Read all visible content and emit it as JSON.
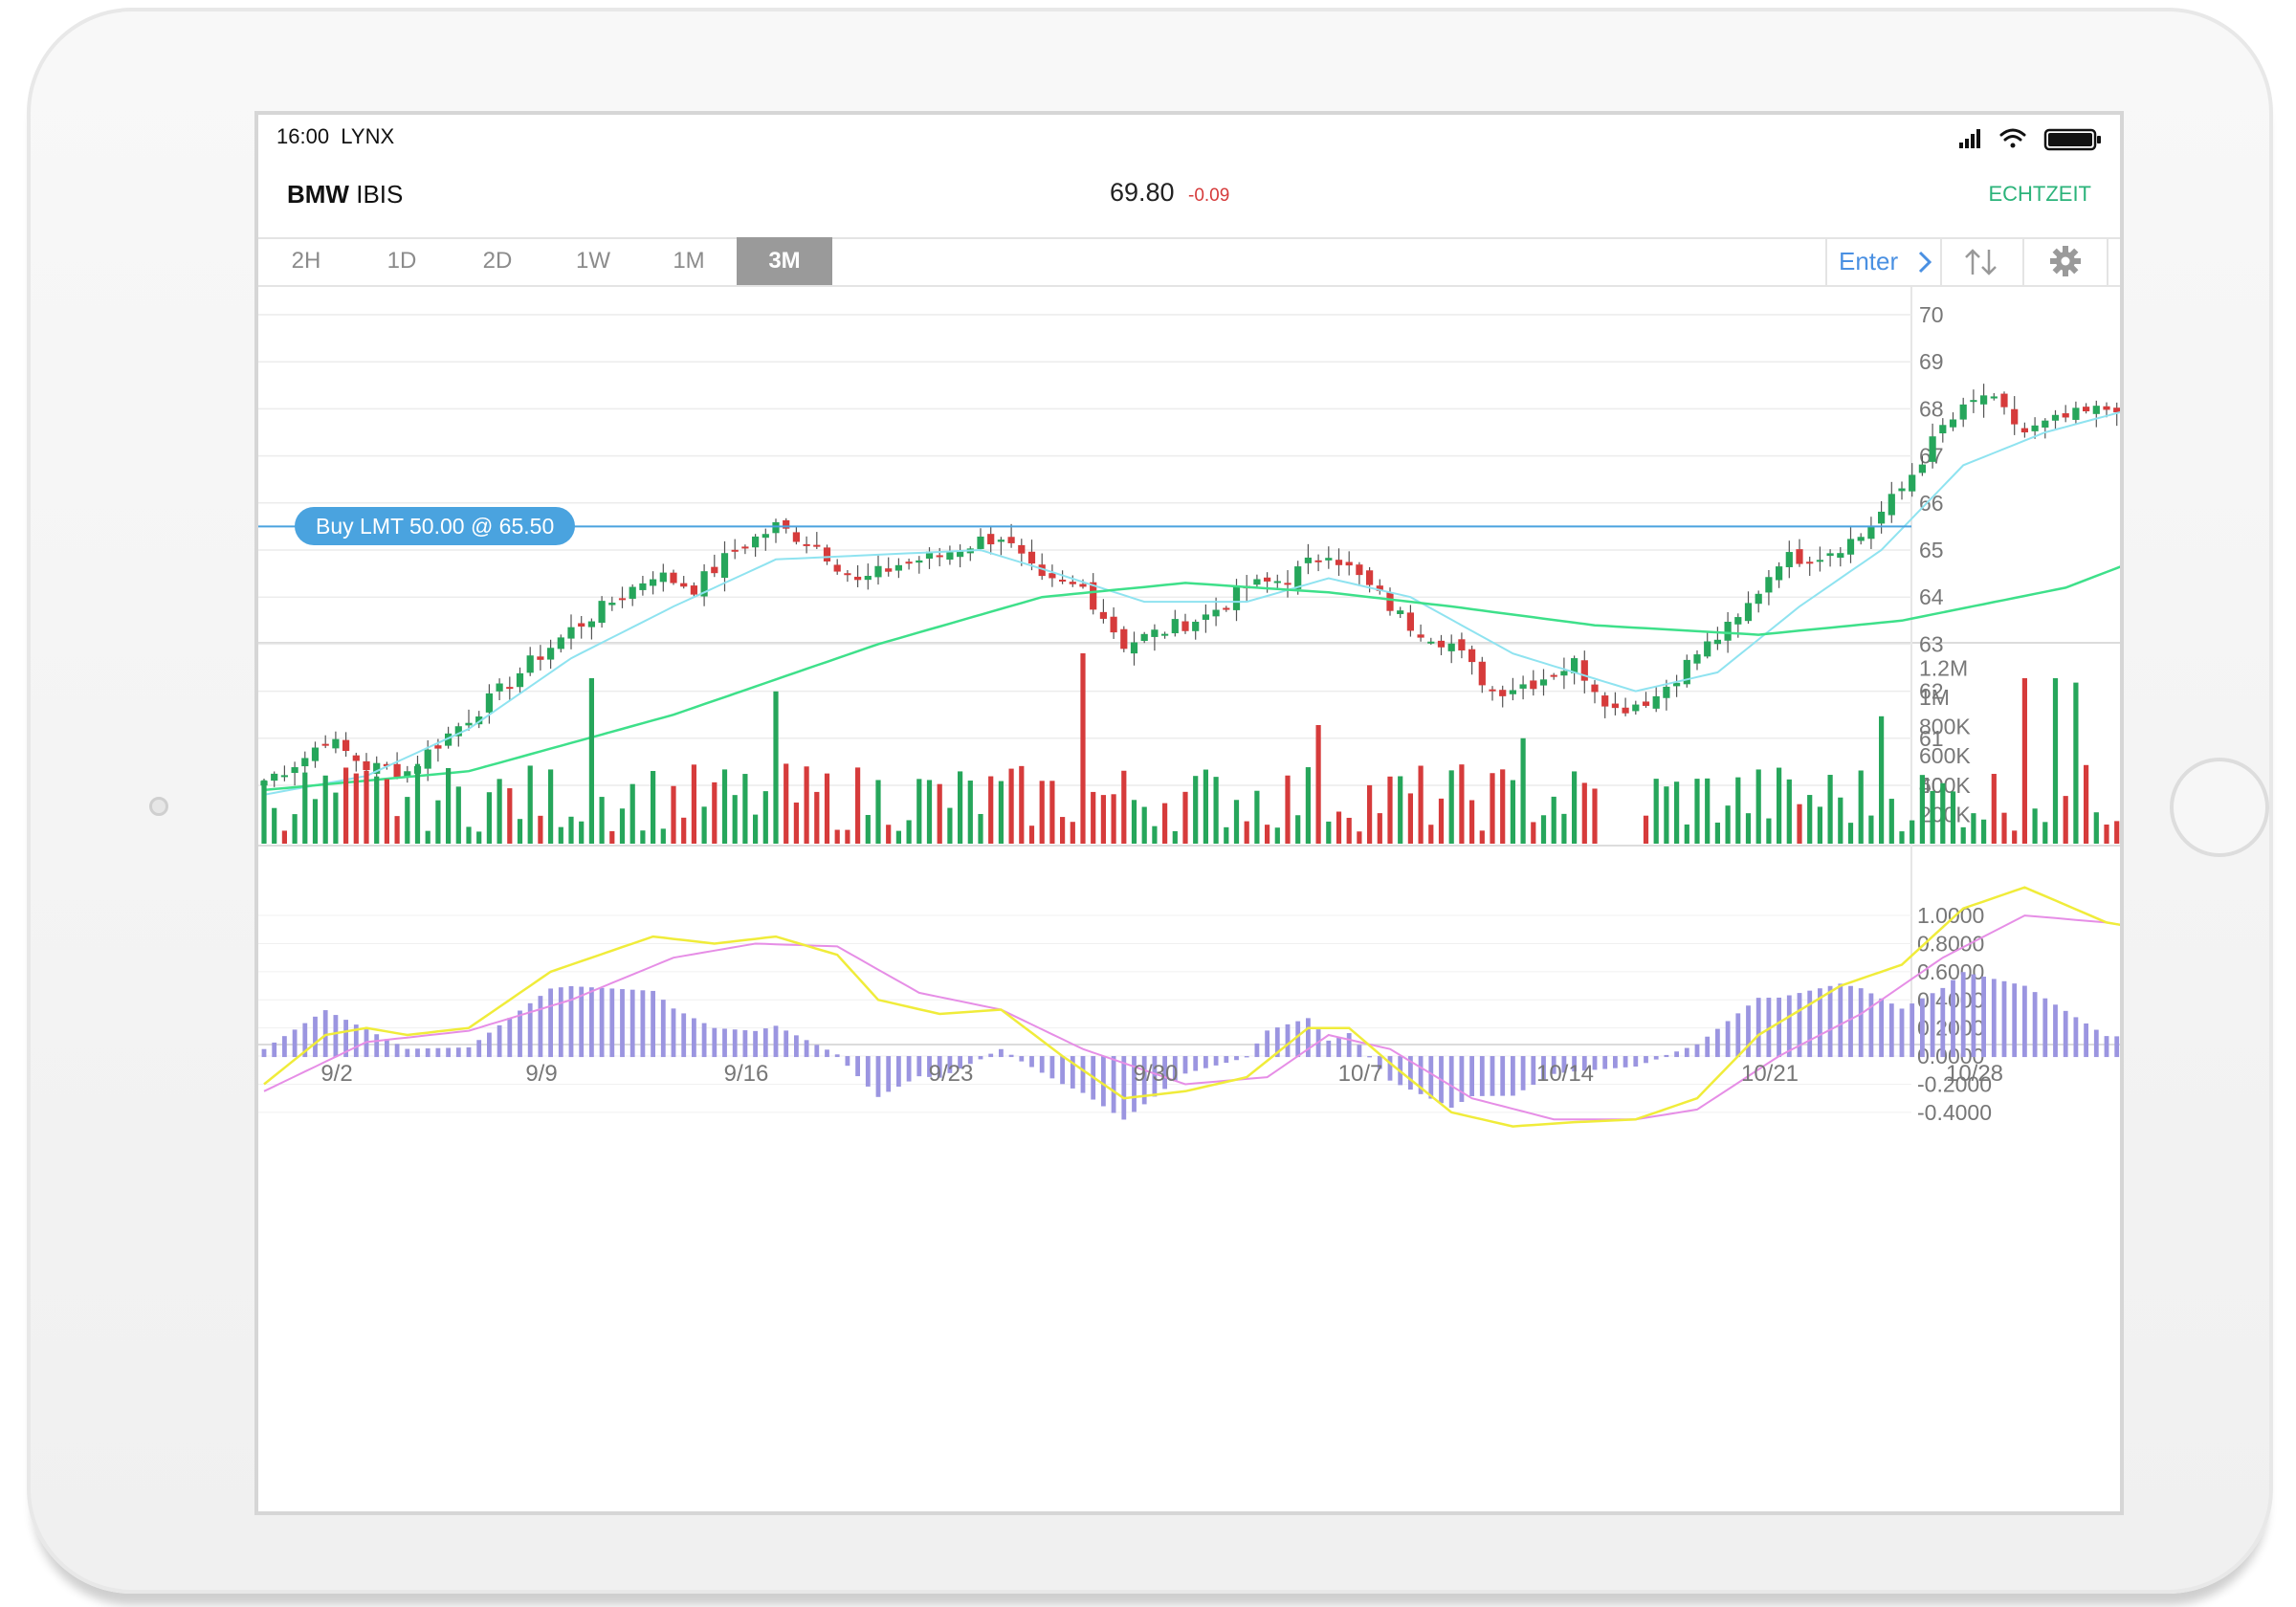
{
  "status_bar": {
    "time": "16:00",
    "carrier": "LYNX"
  },
  "header": {
    "symbol": "BMW",
    "exchange": "IBIS",
    "price": "69.80",
    "change": "-0.09",
    "mode": "ECHTZEIT"
  },
  "toolbar": {
    "timeframes": [
      "2H",
      "1D",
      "2D",
      "1W",
      "1M",
      "3M"
    ],
    "active_timeframe": "3M",
    "enter_label": "Enter",
    "sort_icon": "sort-up-down-icon",
    "settings_icon": "gear-icon"
  },
  "order_line": {
    "label": "Buy LMT 50.00 @ 65.50",
    "price": 65.5
  },
  "colors": {
    "up": "#26a65b",
    "down": "#d63b3b",
    "ma_fast": "#8fe3f0",
    "ma_slow": "#3ee08a",
    "order_line": "#4aa3df",
    "macd": "#f0ec3a",
    "signal": "#e68ee6",
    "hist": "#9b95e0"
  },
  "chart_data": [
    {
      "type": "candlestick",
      "name": "price",
      "y_ticks": [
        "70",
        "69",
        "68",
        "67",
        "66",
        "65",
        "64",
        "63",
        "62",
        "61",
        "60"
      ],
      "ylim": [
        59.5,
        70.5
      ],
      "x_tick_labels": [
        "9/2",
        "9/9",
        "9/16",
        "9/23",
        "9/30",
        "10/7",
        "10/14",
        "10/21",
        "10/28"
      ],
      "close_anchors": [
        [
          0,
          60.1
        ],
        [
          4,
          60.6
        ],
        [
          6,
          61.0
        ],
        [
          10,
          60.4
        ],
        [
          14,
          60.3
        ],
        [
          17,
          60.9
        ],
        [
          22,
          61.8
        ],
        [
          26,
          62.6
        ],
        [
          30,
          63.3
        ],
        [
          34,
          63.9
        ],
        [
          38,
          64.5
        ],
        [
          42,
          64.2
        ],
        [
          46,
          65.0
        ],
        [
          50,
          65.5
        ],
        [
          54,
          65.1
        ],
        [
          58,
          64.3
        ],
        [
          62,
          64.7
        ],
        [
          66,
          64.9
        ],
        [
          70,
          65.2
        ],
        [
          72,
          65.3
        ],
        [
          76,
          64.3
        ],
        [
          80,
          64.2
        ],
        [
          84,
          63.0
        ],
        [
          88,
          63.3
        ],
        [
          92,
          63.6
        ],
        [
          96,
          64.2
        ],
        [
          100,
          64.4
        ],
        [
          104,
          65.0
        ],
        [
          108,
          64.2
        ],
        [
          112,
          63.4
        ],
        [
          116,
          63.0
        ],
        [
          120,
          62.0
        ],
        [
          124,
          62.2
        ],
        [
          128,
          62.6
        ],
        [
          132,
          61.6
        ],
        [
          136,
          61.9
        ],
        [
          140,
          62.8
        ],
        [
          144,
          63.5
        ],
        [
          148,
          64.8
        ],
        [
          152,
          64.9
        ],
        [
          156,
          65.3
        ],
        [
          160,
          66.3
        ],
        [
          164,
          67.6
        ],
        [
          168,
          68.3
        ],
        [
          172,
          67.5
        ],
        [
          176,
          67.8
        ],
        [
          180,
          68.0
        ],
        [
          184,
          68.3
        ],
        [
          188,
          68.8
        ],
        [
          192,
          69.2
        ],
        [
          196,
          69.2
        ],
        [
          200,
          69.8
        ],
        [
          202,
          69.9
        ]
      ],
      "ma_fast_anchors": [
        [
          0,
          59.8
        ],
        [
          10,
          60.2
        ],
        [
          20,
          61.2
        ],
        [
          30,
          62.7
        ],
        [
          40,
          63.8
        ],
        [
          50,
          64.8
        ],
        [
          60,
          64.9
        ],
        [
          70,
          65.0
        ],
        [
          76,
          64.6
        ],
        [
          86,
          63.9
        ],
        [
          96,
          63.9
        ],
        [
          104,
          64.4
        ],
        [
          112,
          64.0
        ],
        [
          122,
          62.8
        ],
        [
          134,
          62.0
        ],
        [
          142,
          62.4
        ],
        [
          150,
          63.8
        ],
        [
          158,
          65.0
        ],
        [
          166,
          66.8
        ],
        [
          174,
          67.5
        ],
        [
          186,
          68.2
        ],
        [
          196,
          69.0
        ],
        [
          202,
          69.7
        ]
      ],
      "ma_slow_anchors": [
        [
          0,
          59.9
        ],
        [
          20,
          60.3
        ],
        [
          40,
          61.5
        ],
        [
          60,
          63.0
        ],
        [
          76,
          64.0
        ],
        [
          90,
          64.3
        ],
        [
          104,
          64.1
        ],
        [
          116,
          63.8
        ],
        [
          130,
          63.4
        ],
        [
          146,
          63.2
        ],
        [
          160,
          63.5
        ],
        [
          176,
          64.2
        ],
        [
          188,
          65.2
        ],
        [
          196,
          66.3
        ],
        [
          202,
          67.4
        ]
      ]
    },
    {
      "type": "bar",
      "name": "volume",
      "y_ticks": [
        "1.2M",
        "1M",
        "800K",
        "600K",
        "400K",
        "200K"
      ],
      "ylim": [
        0,
        1300000
      ],
      "spikes": [
        [
          32,
          1130000
        ],
        [
          50,
          1040000
        ],
        [
          80,
          1300000
        ],
        [
          103,
          810000
        ],
        [
          123,
          720000
        ],
        [
          158,
          870000
        ],
        [
          172,
          1130000
        ],
        [
          175,
          1130000
        ],
        [
          177,
          1100000
        ],
        [
          182,
          790000
        ]
      ]
    },
    {
      "type": "line",
      "name": "macd",
      "y_ticks": [
        "1.0000",
        "0.8000",
        "0.6000",
        "0.4000",
        "0.2000",
        "0.0000",
        "-0.2000",
        "-0.4000"
      ],
      "ylim": [
        -0.55,
        1.2
      ],
      "macd_anchors": [
        [
          0,
          -0.2
        ],
        [
          6,
          0.15
        ],
        [
          10,
          0.2
        ],
        [
          14,
          0.15
        ],
        [
          20,
          0.2
        ],
        [
          28,
          0.6
        ],
        [
          38,
          0.85
        ],
        [
          44,
          0.8
        ],
        [
          50,
          0.85
        ],
        [
          56,
          0.72
        ],
        [
          60,
          0.4
        ],
        [
          66,
          0.3
        ],
        [
          72,
          0.33
        ],
        [
          78,
          0.0
        ],
        [
          84,
          -0.3
        ],
        [
          90,
          -0.25
        ],
        [
          96,
          -0.15
        ],
        [
          102,
          0.2
        ],
        [
          106,
          0.2
        ],
        [
          110,
          -0.05
        ],
        [
          116,
          -0.4
        ],
        [
          122,
          -0.5
        ],
        [
          128,
          -0.47
        ],
        [
          134,
          -0.45
        ],
        [
          140,
          -0.3
        ],
        [
          146,
          0.15
        ],
        [
          154,
          0.5
        ],
        [
          160,
          0.65
        ],
        [
          166,
          1.05
        ],
        [
          172,
          1.2
        ],
        [
          180,
          0.95
        ],
        [
          188,
          0.85
        ],
        [
          196,
          0.75
        ],
        [
          202,
          0.7
        ]
      ],
      "signal_anchors": [
        [
          0,
          -0.25
        ],
        [
          10,
          0.1
        ],
        [
          20,
          0.18
        ],
        [
          30,
          0.4
        ],
        [
          40,
          0.7
        ],
        [
          48,
          0.8
        ],
        [
          56,
          0.78
        ],
        [
          64,
          0.45
        ],
        [
          72,
          0.33
        ],
        [
          80,
          0.05
        ],
        [
          90,
          -0.2
        ],
        [
          98,
          -0.15
        ],
        [
          104,
          0.15
        ],
        [
          110,
          0.05
        ],
        [
          118,
          -0.3
        ],
        [
          126,
          -0.45
        ],
        [
          134,
          -0.45
        ],
        [
          140,
          -0.38
        ],
        [
          148,
          0.0
        ],
        [
          156,
          0.3
        ],
        [
          164,
          0.7
        ],
        [
          172,
          1.0
        ],
        [
          180,
          0.95
        ],
        [
          188,
          0.85
        ],
        [
          196,
          0.75
        ],
        [
          202,
          0.7
        ]
      ]
    }
  ]
}
